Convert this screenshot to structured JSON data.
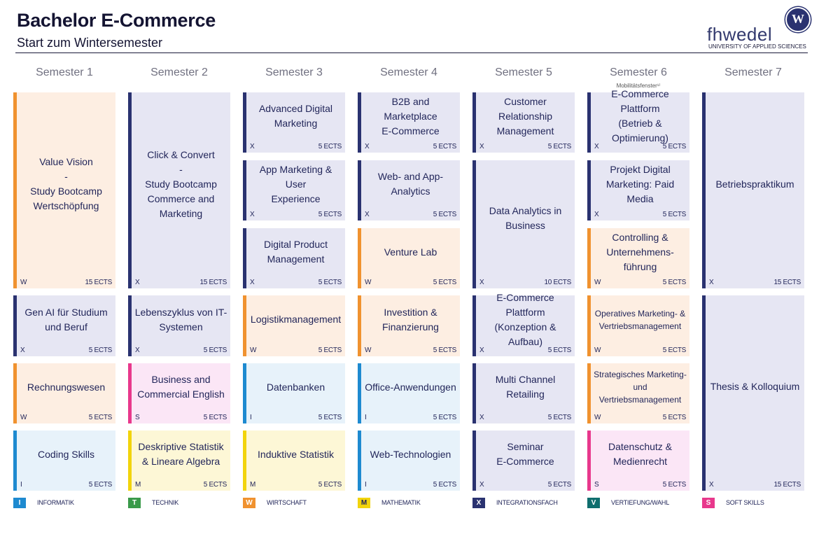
{
  "header": {
    "title": "Bachelor E-Commerce",
    "subtitle": "Start zum Wintersemester",
    "logo_text": "fhwedel",
    "logo_sub": "UNIVERSITY OF APPLIED SCIENCES",
    "logo_seal": "W"
  },
  "semesters": [
    {
      "label": "Semester 1"
    },
    {
      "label": "Semester 2"
    },
    {
      "label": "Semester 3"
    },
    {
      "label": "Semester 4"
    },
    {
      "label": "Semester 5"
    },
    {
      "label": "Semester 6",
      "note": "Mobilitätsfenster¹⁾"
    },
    {
      "label": "Semester 7"
    }
  ],
  "modules": [
    {
      "sem": 0,
      "title": "Value Vision\n-\nStudy Bootcamp\nWertschöpfung",
      "cat": "W",
      "ects": "15 ECTS"
    },
    {
      "sem": 0,
      "title": "Gen AI für Studium\nund Beruf",
      "cat": "X",
      "ects": "5 ECTS"
    },
    {
      "sem": 0,
      "title": "Rechnungswesen",
      "cat": "W",
      "ects": "5 ECTS"
    },
    {
      "sem": 0,
      "title": "Coding Skills",
      "cat": "I",
      "ects": "5 ECTS"
    },
    {
      "sem": 1,
      "title": "Click & Convert\n-\nStudy Bootcamp\nCommerce and\nMarketing",
      "cat": "X",
      "ects": "15 ECTS"
    },
    {
      "sem": 1,
      "title": "Lebenszyklus von IT-\nSystemen",
      "cat": "X",
      "ects": "5 ECTS"
    },
    {
      "sem": 1,
      "title": "Business and\nCommercial English",
      "cat": "S",
      "ects": "5 ECTS"
    },
    {
      "sem": 1,
      "title": "Deskriptive Statistik\n& Lineare Algebra",
      "cat": "M",
      "ects": "5 ECTS"
    },
    {
      "sem": 2,
      "title": "Advanced Digital\nMarketing",
      "cat": "X",
      "ects": "5 ECTS"
    },
    {
      "sem": 2,
      "title": "App Marketing & User\nExperience",
      "cat": "X",
      "ects": "5 ECTS"
    },
    {
      "sem": 2,
      "title": "Digital Product\nManagement",
      "cat": "X",
      "ects": "5 ECTS"
    },
    {
      "sem": 2,
      "title": "Logistikmanagement",
      "cat": "W",
      "ects": "5 ECTS"
    },
    {
      "sem": 2,
      "title": "Datenbanken",
      "cat": "I",
      "ects": "5 ECTS"
    },
    {
      "sem": 2,
      "title": "Induktive Statistik",
      "cat": "M",
      "ects": "5 ECTS"
    },
    {
      "sem": 3,
      "title": "B2B and Marketplace\nE-Commerce",
      "cat": "X",
      "ects": "5 ECTS"
    },
    {
      "sem": 3,
      "title": "Web- and App-\nAnalytics",
      "cat": "X",
      "ects": "5 ECTS"
    },
    {
      "sem": 3,
      "title": "Venture Lab",
      "cat": "W",
      "ects": "5 ECTS"
    },
    {
      "sem": 3,
      "title": "Investition &\nFinanzierung",
      "cat": "W",
      "ects": "5 ECTS"
    },
    {
      "sem": 3,
      "title": "Office-Anwendungen",
      "cat": "I",
      "ects": "5 ECTS"
    },
    {
      "sem": 3,
      "title": "Web-Technologien",
      "cat": "I",
      "ects": "5 ECTS"
    },
    {
      "sem": 4,
      "title": "Customer Relationship\nManagement",
      "cat": "X",
      "ects": "5 ECTS"
    },
    {
      "sem": 4,
      "title": "Data Analytics in\nBusiness",
      "cat": "X",
      "ects": "10 ECTS"
    },
    {
      "sem": 4,
      "title": "E-Commerce Plattform\n(Konzeption & Aufbau)",
      "cat": "X",
      "ects": "5 ECTS"
    },
    {
      "sem": 4,
      "title": "Multi Channel\nRetailing",
      "cat": "X",
      "ects": "5 ECTS"
    },
    {
      "sem": 4,
      "title": "Seminar\nE-Commerce",
      "cat": "X",
      "ects": "5 ECTS"
    },
    {
      "sem": 5,
      "title": "E-Commerce Plattform\n(Betrieb &\nOptimierung)",
      "cat": "X",
      "ects": "5 ECTS"
    },
    {
      "sem": 5,
      "title": "Projekt Digital\nMarketing: Paid Media",
      "cat": "X",
      "ects": "5 ECTS"
    },
    {
      "sem": 5,
      "title": "Controlling &\nUnternehmens-\nführung",
      "cat": "W",
      "ects": "5 ECTS"
    },
    {
      "sem": 5,
      "title": "Operatives Marketing- &\nVertriebsmanagement",
      "cat": "W",
      "ects": "5 ECTS",
      "small": true
    },
    {
      "sem": 5,
      "title": "Strategisches Marketing-\nund Vertriebsmanagement",
      "cat": "W",
      "ects": "5 ECTS",
      "small": true
    },
    {
      "sem": 5,
      "title": "Datenschutz &\nMedienrecht",
      "cat": "S",
      "ects": "5 ECTS"
    },
    {
      "sem": 6,
      "title": "Betriebspraktikum",
      "cat": "X",
      "ects": "15 ECTS"
    },
    {
      "sem": 6,
      "title": "Thesis & Kolloquium",
      "cat": "X",
      "ects": "15 ECTS"
    }
  ],
  "legend": [
    {
      "code": "I",
      "label": "INFORMATIK",
      "color": "#1e8ad0"
    },
    {
      "code": "T",
      "label": "TECHNIK",
      "color": "#3a9a4a"
    },
    {
      "code": "W",
      "label": "WIRTSCHAFT",
      "color": "#f0922f"
    },
    {
      "code": "M",
      "label": "MATHEMATIK",
      "color": "#f2d40c"
    },
    {
      "code": "X",
      "label": "INTEGRATIONSFACH",
      "color": "#2a3270"
    },
    {
      "code": "V",
      "label": "VERTIEFUNG/WAHL",
      "color": "#0f6e6e"
    },
    {
      "code": "S",
      "label": "SOFT SKILLS",
      "color": "#e8388c"
    }
  ]
}
